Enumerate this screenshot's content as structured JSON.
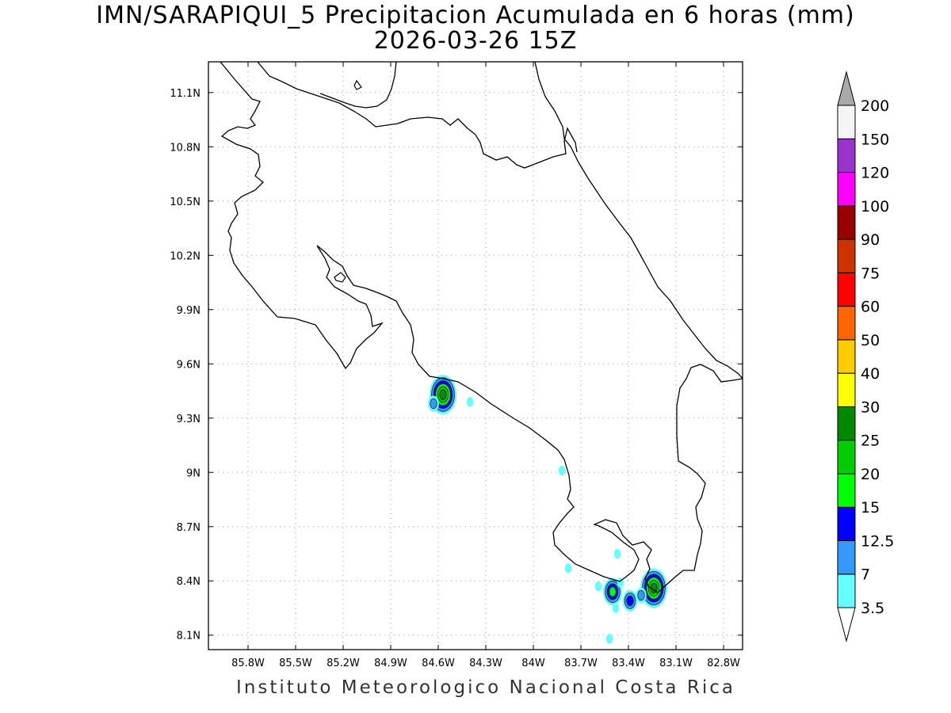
{
  "title": {
    "line1": "IMN/SARAPIQUI_5 Precipitacion Acumulada en 6 horas (mm)",
    "line2": "2026-03-26 15Z"
  },
  "footer": "Instituto Meteorologico Nacional Costa Rica",
  "map": {
    "lon_range": [
      -86.05,
      -82.68
    ],
    "lat_range": [
      8.02,
      11.27
    ],
    "x_ticks": [
      "85.8W",
      "85.5W",
      "85.2W",
      "84.9W",
      "84.6W",
      "84.3W",
      "84W",
      "83.7W",
      "83.4W",
      "83.1W",
      "82.8W"
    ],
    "x_tick_values": [
      -85.8,
      -85.5,
      -85.2,
      -84.9,
      -84.6,
      -84.3,
      -84.0,
      -83.7,
      -83.4,
      -83.1,
      -82.8
    ],
    "y_ticks": [
      "11.1N",
      "10.8N",
      "10.5N",
      "10.2N",
      "9.9N",
      "9.6N",
      "9.3N",
      "9N",
      "8.7N",
      "8.4N",
      "8.1N"
    ],
    "y_tick_values": [
      11.1,
      10.8,
      10.5,
      10.2,
      9.9,
      9.6,
      9.3,
      9.0,
      8.7,
      8.4,
      8.1
    ],
    "grid": "dotted",
    "coastline_color": "#000000"
  },
  "colorbar": {
    "labels": [
      "3.5",
      "7",
      "12.5",
      "15",
      "20",
      "25",
      "30",
      "40",
      "50",
      "60",
      "75",
      "90",
      "100",
      "120",
      "150",
      "200"
    ],
    "colors": [
      "#66ffff",
      "#3399ff",
      "#0000ff",
      "#00ff00",
      "#00cc00",
      "#008800",
      "#ffff00",
      "#ffcc00",
      "#ff6600",
      "#ff0000",
      "#cc3300",
      "#990000",
      "#ff00ff",
      "#9933cc",
      "#f5f5f5"
    ],
    "top_arrow_color": "#aaaaaa",
    "bottom_arrow_color": "#ffffff"
  },
  "precip_cells": [
    {
      "name": "sarapiqui-north-cell",
      "lon": -84.57,
      "lat": 9.43,
      "level": "25"
    },
    {
      "name": "sarapiqui-west-cell",
      "lon": -84.63,
      "lat": 9.38,
      "level": "7"
    },
    {
      "name": "sarapiqui-east-cell",
      "lon": -84.4,
      "lat": 9.39,
      "level": "3.5"
    },
    {
      "name": "south-cell-1",
      "lon": -83.5,
      "lat": 8.34,
      "level": "15"
    },
    {
      "name": "south-cell-2",
      "lon": -83.39,
      "lat": 8.29,
      "level": "12.5"
    },
    {
      "name": "south-cell-3",
      "lon": -83.24,
      "lat": 8.36,
      "level": "25"
    },
    {
      "name": "south-cell-4",
      "lon": -83.32,
      "lat": 8.32,
      "level": "7"
    },
    {
      "name": "south-cell-5",
      "lon": -83.47,
      "lat": 8.55,
      "level": "3.5"
    },
    {
      "name": "south-cell-6",
      "lon": -83.78,
      "lat": 8.47,
      "level": "3.5"
    },
    {
      "name": "south-cell-7",
      "lon": -83.59,
      "lat": 8.37,
      "level": "3.5"
    },
    {
      "name": "south-cell-8",
      "lon": -83.45,
      "lat": 8.39,
      "level": "3.5"
    },
    {
      "name": "south-cell-9",
      "lon": -83.48,
      "lat": 8.25,
      "level": "3.5"
    },
    {
      "name": "south-cell-10",
      "lon": -83.52,
      "lat": 8.08,
      "level": "3.5"
    },
    {
      "name": "central-dot",
      "lon": -83.82,
      "lat": 9.01,
      "level": "3.5"
    }
  ]
}
